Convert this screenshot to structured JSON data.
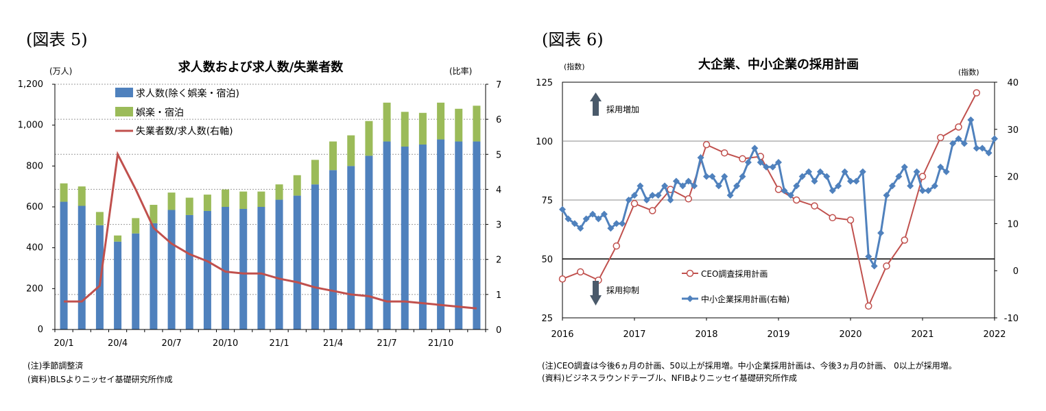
{
  "chart5": {
    "fig_label": "(図表 5)",
    "notes": [
      "(注)季節調整済",
      "(資料)BLSよりニッセイ基礎研究所作成"
    ]
  },
  "chart6": {
    "fig_label": "(図表 6)",
    "annotations": {
      "up": "採用増加",
      "down": "採用抑制"
    },
    "notes": [
      "(注)CEO調査は今後6ヵ月の計画、50以上が採用増。中小企業採用計画は、今後3ヵ月の計画、 0以上が採用増。",
      "(資料)ビジネスラウンドテーブル、NFIBよりニッセイ基礎研究所作成"
    ]
  },
  "colors": {
    "blue": "#4f81bd",
    "green": "#9bbb59",
    "red": "#c0504d",
    "axis": "#000000",
    "grid": "#888888"
  },
  "chart_data": [
    {
      "type": "bar",
      "title": "求人数および求人数/失業者数",
      "ylabel": "(万人)",
      "y2label": "(比率)",
      "ylim": [
        0,
        1200
      ],
      "y2lim": [
        0,
        7
      ],
      "yticks": [
        "0",
        "200",
        "400",
        "600",
        "800",
        "1,000",
        "1,200"
      ],
      "y2ticks": [
        "0",
        "1",
        "2",
        "3",
        "4",
        "5",
        "6",
        "7"
      ],
      "categories": [
        "20/1",
        "20/2",
        "20/3",
        "20/4",
        "20/5",
        "20/6",
        "20/7",
        "20/8",
        "20/9",
        "20/10",
        "20/11",
        "20/12",
        "21/1",
        "21/2",
        "21/3",
        "21/4",
        "21/5",
        "21/6",
        "21/7",
        "21/8",
        "21/9",
        "21/10",
        "21/11",
        "21/12"
      ],
      "xtick_labels": [
        "20/1",
        "20/4",
        "20/7",
        "20/10",
        "21/1",
        "21/4",
        "21/7",
        "21/10"
      ],
      "stacked": true,
      "grid": true,
      "legend_position": "top-left",
      "series": [
        {
          "name": "求人数(除く娯楽・宿泊)",
          "type": "bar",
          "values": [
            625,
            605,
            510,
            430,
            470,
            520,
            585,
            560,
            580,
            600,
            590,
            600,
            635,
            655,
            710,
            780,
            800,
            850,
            920,
            895,
            905,
            930,
            920,
            920
          ]
        },
        {
          "name": "娯楽・宿泊",
          "type": "bar",
          "values": [
            90,
            95,
            65,
            30,
            75,
            90,
            85,
            85,
            80,
            85,
            85,
            75,
            75,
            100,
            120,
            140,
            150,
            170,
            190,
            170,
            155,
            180,
            160,
            175
          ]
        },
        {
          "name": "失業者数/求人数(右軸)",
          "type": "line",
          "axis": "right",
          "values": [
            0.8,
            0.8,
            1.25,
            5.0,
            4.0,
            2.9,
            2.45,
            2.15,
            1.95,
            1.65,
            1.6,
            1.6,
            1.45,
            1.35,
            1.2,
            1.1,
            1.0,
            0.95,
            0.8,
            0.8,
            0.75,
            0.7,
            0.65,
            0.6
          ]
        }
      ]
    },
    {
      "type": "line",
      "title": "大企業、中小企業の採用計画",
      "ylabel": "(指数)",
      "y2label": "(指数)",
      "ylim": [
        25,
        125
      ],
      "y2lim": [
        -10,
        40
      ],
      "yticks": [
        25,
        50,
        75,
        100,
        125
      ],
      "y2ticks": [
        -10,
        0,
        10,
        20,
        30,
        40
      ],
      "xlim": [
        2016,
        2022
      ],
      "xticks": [
        "2016",
        "2017",
        "2018",
        "2019",
        "2020",
        "2021",
        "2022"
      ],
      "grid": true,
      "legend_position": "bottom-center",
      "series": [
        {
          "name": "CEO調査採用計画",
          "axis": "left",
          "x": [
            2016.0,
            2016.25,
            2016.5,
            2016.75,
            2017.0,
            2017.25,
            2017.5,
            2017.75,
            2018.0,
            2018.25,
            2018.5,
            2018.75,
            2019.0,
            2019.25,
            2019.5,
            2019.75,
            2020.0,
            2020.25,
            2020.5,
            2020.75,
            2021.0,
            2021.25,
            2021.5,
            2021.75
          ],
          "values": [
            41.5,
            44.5,
            41,
            55.5,
            73.5,
            70.5,
            79.5,
            75.5,
            98.5,
            95,
            92.5,
            93.5,
            79.5,
            75,
            72.5,
            67.5,
            66.5,
            30,
            47,
            58,
            85,
            101.5,
            106,
            120.5
          ]
        },
        {
          "name": "中小企業採用計画(右軸)",
          "axis": "right",
          "x": [
            2016.0,
            2016.08,
            2016.17,
            2016.25,
            2016.33,
            2016.42,
            2016.5,
            2016.58,
            2016.67,
            2016.75,
            2016.83,
            2016.92,
            2017.0,
            2017.08,
            2017.17,
            2017.25,
            2017.33,
            2017.42,
            2017.5,
            2017.58,
            2017.67,
            2017.75,
            2017.83,
            2017.92,
            2018.0,
            2018.08,
            2018.17,
            2018.25,
            2018.33,
            2018.42,
            2018.5,
            2018.58,
            2018.67,
            2018.75,
            2018.83,
            2018.92,
            2019.0,
            2019.08,
            2019.17,
            2019.25,
            2019.33,
            2019.42,
            2019.5,
            2019.58,
            2019.67,
            2019.75,
            2019.83,
            2019.92,
            2020.0,
            2020.08,
            2020.17,
            2020.25,
            2020.33,
            2020.42,
            2020.5,
            2020.58,
            2020.67,
            2020.75,
            2020.83,
            2020.92,
            2021.0,
            2021.08,
            2021.17,
            2021.25,
            2021.33,
            2021.42,
            2021.5,
            2021.58,
            2021.67,
            2021.75,
            2021.83,
            2021.92,
            2022.0
          ],
          "values": [
            13,
            11,
            10,
            9,
            11,
            12,
            11,
            12,
            9,
            10,
            10,
            15,
            16,
            18,
            15,
            16,
            16,
            18,
            15,
            19,
            18,
            19,
            18,
            24,
            20,
            20,
            18,
            20,
            16,
            18,
            20,
            23,
            26,
            23,
            22,
            22,
            23,
            17,
            16,
            18,
            20,
            21,
            19,
            21,
            20,
            17,
            18,
            21,
            19,
            19,
            21,
            3,
            1,
            8,
            16,
            18,
            20,
            22,
            18,
            21,
            17,
            17,
            18,
            22,
            21,
            27,
            28,
            27,
            32,
            26,
            26,
            25,
            28
          ]
        }
      ]
    }
  ]
}
